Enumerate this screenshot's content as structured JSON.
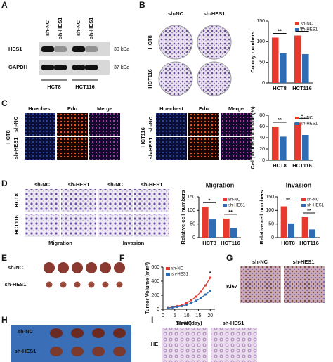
{
  "panel_letters": [
    "A",
    "B",
    "C",
    "D",
    "E",
    "F",
    "G",
    "H",
    "I"
  ],
  "western_blot": {
    "lanes": [
      "sh-NC",
      "sh-HES1",
      "sh-NC",
      "sh-HES1"
    ],
    "proteins": [
      "HES1",
      "GAPDH"
    ],
    "sizes": [
      "30 kDa",
      "37 kDa"
    ],
    "cell_lines": [
      "HCT8",
      "HCT116"
    ]
  },
  "colony": {
    "conditions": [
      "sh-NC",
      "sh-HES1"
    ],
    "cell_lines": [
      "HCT8",
      "HCT116"
    ]
  },
  "edu": {
    "stains": [
      "Hoechest",
      "Edu",
      "Merge"
    ],
    "left": {
      "cell_line": "HCT8",
      "conditions": [
        "sh-NC",
        "sh-HES1"
      ]
    },
    "right": {
      "cell_line": "HCT116",
      "conditions": [
        "sh-NC",
        "sh-HES1"
      ]
    }
  },
  "transwell": {
    "conditions": [
      "sh-NC",
      "sh-HES1",
      "sh-NC",
      "sh-HES1"
    ],
    "cell_lines": [
      "HCT8",
      "HCT116"
    ],
    "assays": [
      "Migration",
      "Invasion"
    ]
  },
  "tumors": {
    "conditions": [
      "sh-NC",
      "sh-HES1"
    ]
  },
  "ihc": {
    "conditions": [
      "sh-NC",
      "sh-HES1"
    ],
    "stain": "Ki67"
  },
  "lungs": {
    "conditions": [
      "sh-NC",
      "sh-HES1"
    ]
  },
  "he": {
    "conditions": [
      "sh-NC",
      "sh-HES1"
    ],
    "stain": "HE"
  },
  "chart_data": [
    {
      "type": "bar",
      "y_label": "Colony numbers",
      "categories": [
        "HCT8",
        "HCT116"
      ],
      "series": [
        {
          "name": "sh-NC",
          "color": "#e8392f",
          "values": [
            110,
            115
          ]
        },
        {
          "name": "sh-HES1",
          "color": "#2e6db4",
          "values": [
            72,
            70
          ]
        }
      ],
      "ylim": [
        0,
        150
      ],
      "yticks": [
        0,
        50,
        100,
        150
      ],
      "annotations": [
        "**",
        "**"
      ]
    },
    {
      "type": "bar",
      "y_label": "Cell proliferation rate (%)",
      "categories": [
        "HCT8",
        "HCT116"
      ],
      "series": [
        {
          "name": "sh-NC",
          "color": "#e8392f",
          "values": [
            60,
            67
          ]
        },
        {
          "name": "sh-HES1",
          "color": "#2e6db4",
          "values": [
            42,
            45
          ]
        }
      ],
      "ylim": [
        0,
        80
      ],
      "yticks": [
        0,
        20,
        40,
        60,
        80
      ],
      "annotations": [
        "**",
        "*"
      ]
    },
    {
      "type": "bar",
      "title": "Migration",
      "y_label": "Relative cell numbers",
      "categories": [
        "HCT8",
        "HCT116"
      ],
      "series": [
        {
          "name": "sh-NC",
          "color": "#e8392f",
          "values": [
            113,
            70
          ]
        },
        {
          "name": "sh-HES1",
          "color": "#2e6db4",
          "values": [
            67,
            35
          ]
        }
      ],
      "ylim": [
        0,
        150
      ],
      "yticks": [
        0,
        50,
        100,
        150
      ],
      "annotations": [
        "*",
        "**"
      ]
    },
    {
      "type": "bar",
      "title": "Invasion",
      "y_label": "Relative cell numbers",
      "categories": [
        "HCT8",
        "HCT116"
      ],
      "series": [
        {
          "name": "sh-NC",
          "color": "#e8392f",
          "values": [
            115,
            75
          ]
        },
        {
          "name": "sh-HES1",
          "color": "#2e6db4",
          "values": [
            52,
            30
          ]
        }
      ],
      "ylim": [
        0,
        150
      ],
      "yticks": [
        0,
        50,
        100,
        150
      ],
      "annotations": [
        "**",
        "**"
      ]
    },
    {
      "type": "line",
      "y_label": "Tumor Volume (mm³)",
      "x_label": "Time (day)",
      "x": [
        2,
        4,
        6,
        8,
        10,
        12,
        14,
        16,
        18,
        20
      ],
      "series": [
        {
          "name": "sh-NC",
          "color": "#e8392f",
          "values": [
            20,
            30,
            45,
            60,
            90,
            130,
            180,
            250,
            340,
            450
          ]
        },
        {
          "name": "sh-HES1",
          "color": "#2e6db4",
          "values": [
            15,
            25,
            35,
            45,
            65,
            90,
            120,
            160,
            210,
            260
          ]
        }
      ],
      "xlim": [
        0,
        22
      ],
      "xticks": [
        0,
        5,
        10,
        15,
        20
      ],
      "ylim": [
        0,
        600
      ],
      "yticks": [
        0,
        200,
        400,
        600
      ],
      "annotations": [
        "*"
      ]
    }
  ]
}
